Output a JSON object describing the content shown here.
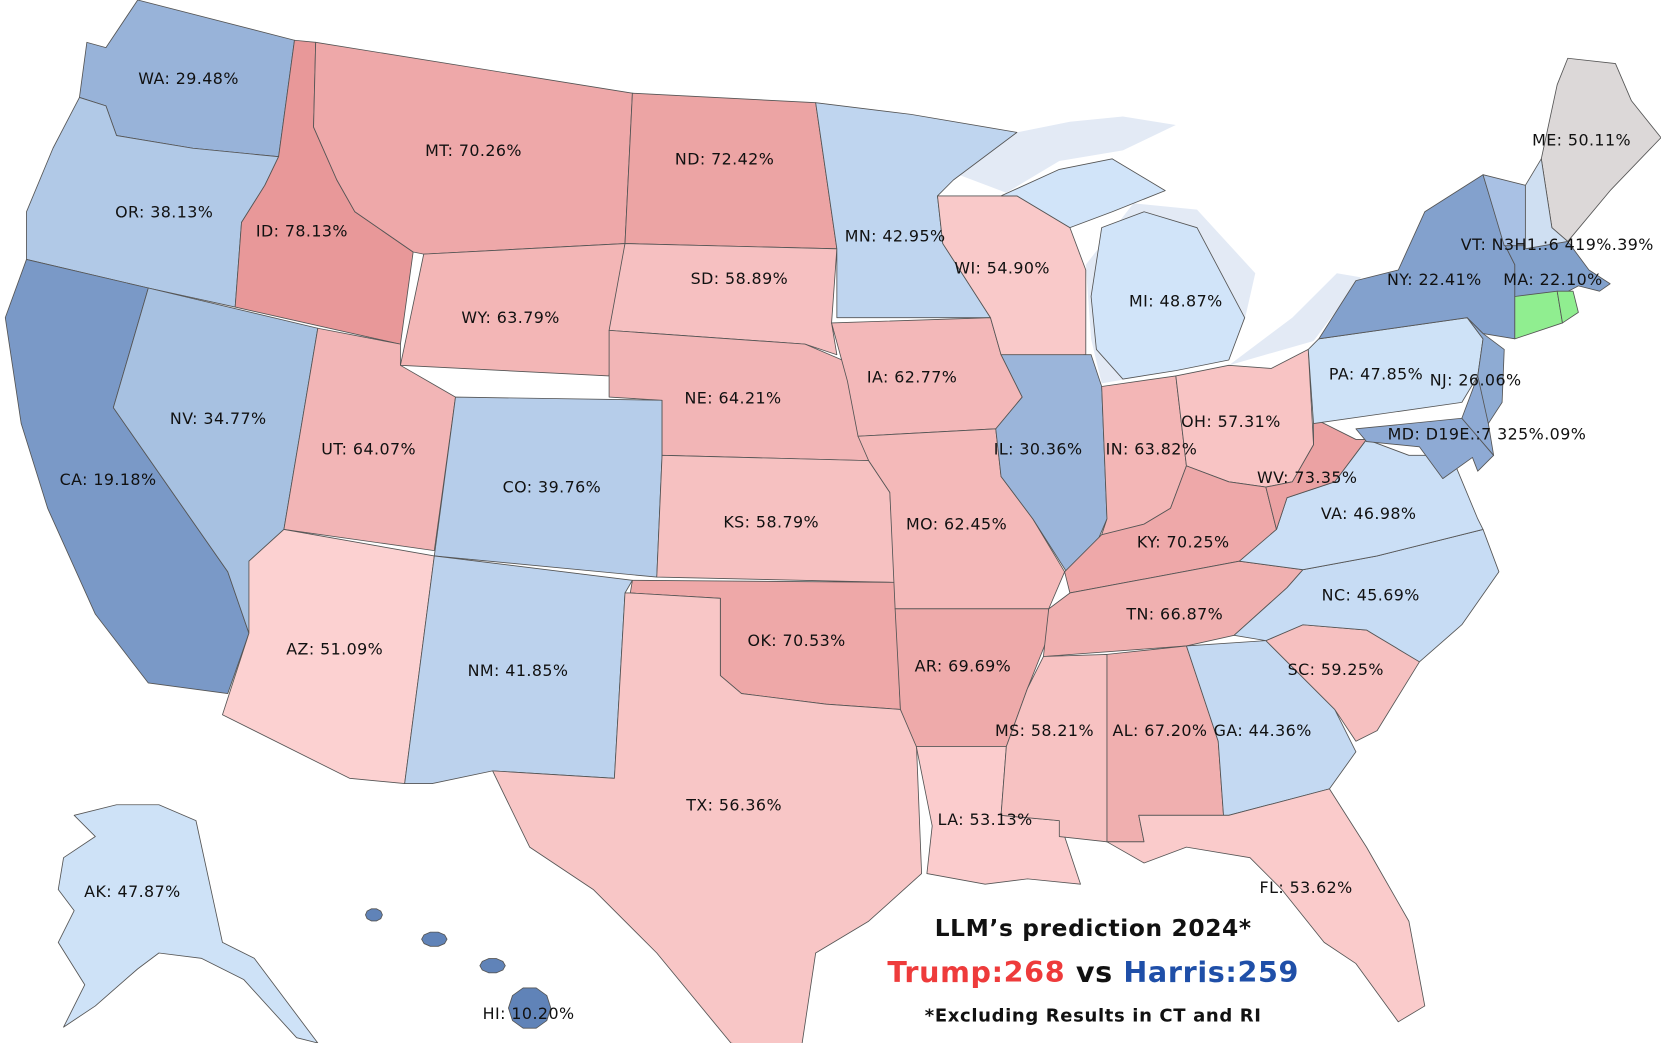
{
  "states": [
    {
      "label": "WA: 29.48%",
      "value": 29.48
    },
    {
      "label": "OR: 38.13%",
      "value": 38.13
    },
    {
      "label": "CA: 19.18%",
      "value": 19.18
    },
    {
      "label": "NV: 34.77%",
      "value": 34.77
    },
    {
      "label": "ID: 78.13%",
      "value": 78.13
    },
    {
      "label": "MT: 70.26%",
      "value": 70.26
    },
    {
      "label": "WY: 63.79%",
      "value": 63.79
    },
    {
      "label": "UT: 64.07%",
      "value": 64.07
    },
    {
      "label": "AZ: 51.09%",
      "value": 51.09
    },
    {
      "label": "CO: 39.76%",
      "value": 39.76
    },
    {
      "label": "NM: 41.85%",
      "value": 41.85
    },
    {
      "label": "ND: 72.42%",
      "value": 72.42
    },
    {
      "label": "SD: 58.89%",
      "value": 58.89
    },
    {
      "label": "NE: 64.21%",
      "value": 64.21
    },
    {
      "label": "KS: 58.79%",
      "value": 58.79
    },
    {
      "label": "OK: 70.53%",
      "value": 70.53
    },
    {
      "label": "TX: 56.36%",
      "value": 56.36
    },
    {
      "label": "MN: 42.95%",
      "value": 42.95
    },
    {
      "label": "IA: 62.77%",
      "value": 62.77
    },
    {
      "label": "MO: 62.45%",
      "value": 62.45
    },
    {
      "label": "AR: 69.69%",
      "value": 69.69
    },
    {
      "label": "LA: 53.13%",
      "value": 53.13
    },
    {
      "label": "WI: 54.90%",
      "value": 54.9
    },
    {
      "label": "IL: 30.36%",
      "value": 30.36
    },
    {
      "label": "MI: 48.87%",
      "value": 48.87
    },
    {
      "label": "IN: 63.82%",
      "value": 63.82
    },
    {
      "label": "OH: 57.31%",
      "value": 57.31
    },
    {
      "label": "KY: 70.25%",
      "value": 70.25
    },
    {
      "label": "TN: 66.87%",
      "value": 66.87
    },
    {
      "label": "MS: 58.21%",
      "value": 58.21
    },
    {
      "label": "AL: 67.20%",
      "value": 67.2
    },
    {
      "label": "GA: 44.36%",
      "value": 44.36
    },
    {
      "label": "FL: 53.62%",
      "value": 53.62
    },
    {
      "label": "SC: 59.25%",
      "value": 59.25
    },
    {
      "label": "NC: 45.69%",
      "value": 45.69
    },
    {
      "label": "VA: 46.98%",
      "value": 46.98
    },
    {
      "label": "WV: 73.35%",
      "value": 73.35
    },
    {
      "label": "PA: 47.85%",
      "value": 47.85
    },
    {
      "label": "NY: 22.41%",
      "value": 22.41
    },
    {
      "label": "NJ: 26.06%",
      "value": 26.06
    },
    {
      "label": "MA: 22.10%",
      "value": 22.1
    },
    {
      "label": "ME: 50.11%",
      "value": 50.11
    },
    {
      "label": "AK: 47.87%",
      "value": 47.87
    },
    {
      "label": "HI: 10.20%",
      "value": 10.2
    }
  ],
  "overlap_labels": [
    "VT: N3H1.:6 419%.39%",
    "MD: D19E.:7 325%.09%"
  ],
  "footer": {
    "title": "LLM’s prediction 2024*",
    "trump": "Trump:268",
    "vs": "vs",
    "harris": "Harris:259",
    "note": "*Excluding Results in CT and RI"
  }
}
